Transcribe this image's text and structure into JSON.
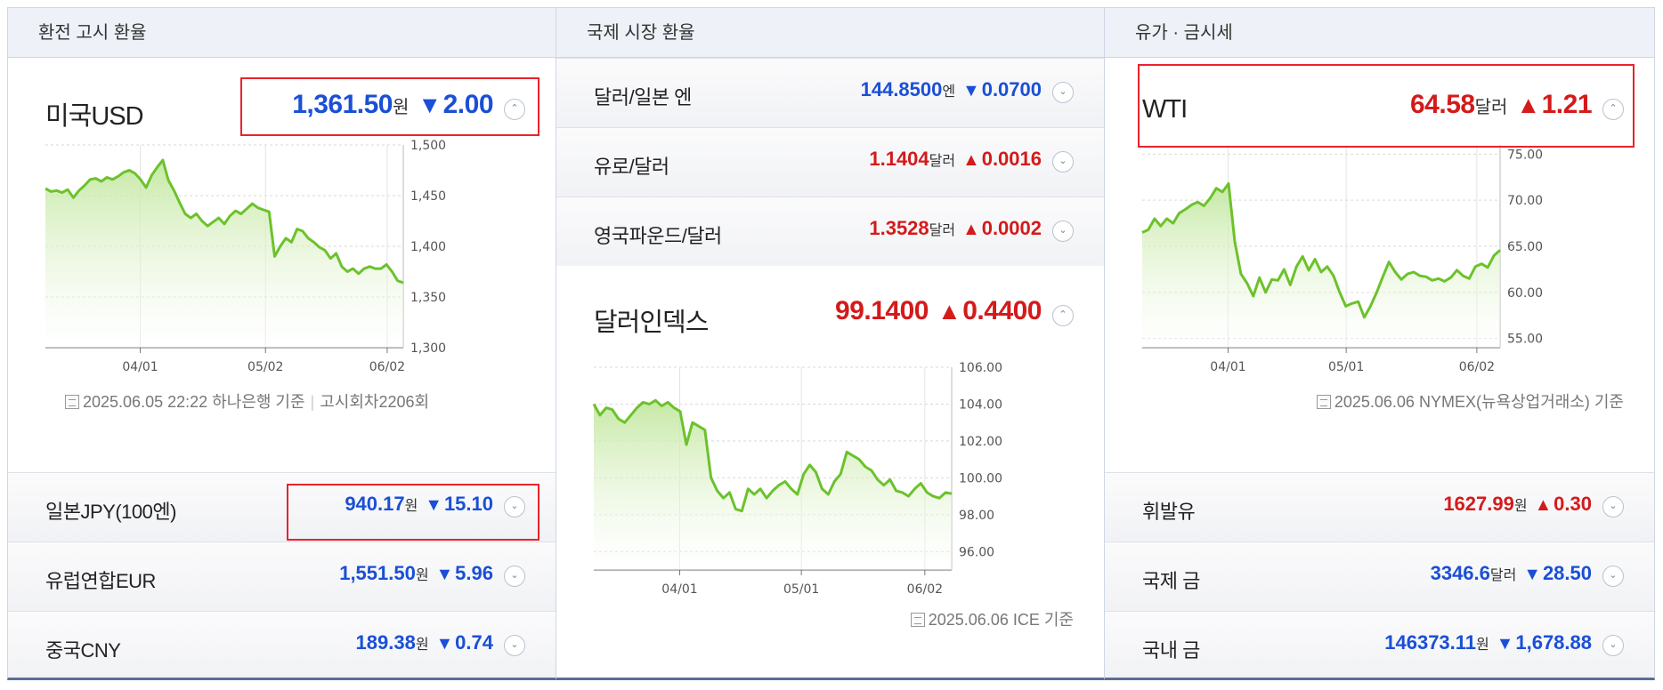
{
  "panels": {
    "left": {
      "title": "환전 고시 환율",
      "main": {
        "name": "미국USD",
        "value": "1,361.50",
        "unit": "원",
        "direction": "down",
        "change": "2.00"
      },
      "chart_data": {
        "type": "area",
        "title": "",
        "x_ticks": [
          "04/01",
          "05/02",
          "06/02"
        ],
        "y_ticks": [
          "1,500",
          "1,450",
          "1,400",
          "1,350",
          "1,300"
        ],
        "ylim": [
          1300,
          1500
        ],
        "grid": true,
        "series": [
          {
            "values": [
              1457,
              1454,
              1455,
              1453,
              1456,
              1448,
              1455,
              1460,
              1466,
              1467,
              1464,
              1468,
              1466,
              1469,
              1473,
              1475,
              1472,
              1466,
              1458,
              1470,
              1478,
              1485,
              1465,
              1455,
              1443,
              1432,
              1428,
              1432,
              1425,
              1420,
              1424,
              1428,
              1422,
              1430,
              1435,
              1432,
              1437,
              1442,
              1438,
              1436,
              1434,
              1390,
              1400,
              1408,
              1404,
              1417,
              1415,
              1408,
              1404,
              1399,
              1396,
              1388,
              1393,
              1380,
              1375,
              1378,
              1373,
              1378,
              1380,
              1378,
              1378,
              1382,
              1375,
              1366,
              1364
            ]
          }
        ]
      },
      "source": {
        "date": "2025.06.05 22:22",
        "bank": "하나은행 기준",
        "round": "고시회차2206회"
      },
      "rows": [
        {
          "name": "일본JPY(100엔)",
          "value": "940.17",
          "unit": "원",
          "direction": "down",
          "change": "15.10"
        },
        {
          "name": "유럽연합EUR",
          "value": "1,551.50",
          "unit": "원",
          "direction": "down",
          "change": "5.96"
        },
        {
          "name": "중국CNY",
          "value": "189.38",
          "unit": "원",
          "direction": "down",
          "change": "0.74"
        }
      ]
    },
    "middle": {
      "title": "국제 시장 환율",
      "rows": [
        {
          "name": "달러/일본 엔",
          "value": "144.8500",
          "unit": "엔",
          "direction": "down",
          "change": "0.0700"
        },
        {
          "name": "유로/달러",
          "value": "1.1404",
          "unit": "달러",
          "direction": "up",
          "change": "0.0016"
        },
        {
          "name": "영국파운드/달러",
          "value": "1.3528",
          "unit": "달러",
          "direction": "up",
          "change": "0.0002"
        }
      ],
      "main": {
        "name": "달러인덱스",
        "value": "99.1400",
        "unit": "",
        "direction": "up",
        "change": "0.4400"
      },
      "chart_data": {
        "type": "area",
        "title": "",
        "x_ticks": [
          "04/01",
          "05/01",
          "06/02"
        ],
        "y_ticks": [
          "106.00",
          "104.00",
          "102.00",
          "100.00",
          "98.00",
          "96.00"
        ],
        "ylim": [
          95,
          106
        ],
        "grid": true,
        "series": [
          {
            "values": [
              104.0,
              103.4,
              103.8,
              103.7,
              103.2,
              103.0,
              103.4,
              103.8,
              104.1,
              104.0,
              104.2,
              103.9,
              104.1,
              103.8,
              103.6,
              101.8,
              103.0,
              102.8,
              102.6,
              100.0,
              99.3,
              98.9,
              99.2,
              98.3,
              98.2,
              99.4,
              99.1,
              99.4,
              98.9,
              99.3,
              99.6,
              99.8,
              99.4,
              99.1,
              100.2,
              100.7,
              100.3,
              99.4,
              99.1,
              99.8,
              100.2,
              101.4,
              101.2,
              101.0,
              100.6,
              100.4,
              99.9,
              99.6,
              99.9,
              99.3,
              99.2,
              99.0,
              99.4,
              99.7,
              99.2,
              99.0,
              98.9,
              99.2,
              99.14
            ]
          }
        ]
      },
      "source": {
        "date": "2025.06.06",
        "label": "ICE 기준"
      }
    },
    "right": {
      "title": "유가 · 금시세",
      "main": {
        "name": "WTI",
        "value": "64.58",
        "unit": "달러",
        "direction": "up",
        "change": "1.21"
      },
      "chart_data": {
        "type": "area",
        "title": "",
        "x_ticks": [
          "04/01",
          "05/01",
          "06/02"
        ],
        "y_ticks": [
          "75.00",
          "70.00",
          "65.00",
          "60.00",
          "55.00"
        ],
        "ylim": [
          54,
          76
        ],
        "grid": true,
        "series": [
          {
            "values": [
              66.5,
              66.8,
              68.0,
              67.2,
              68.0,
              67.5,
              68.6,
              69.0,
              69.5,
              69.8,
              69.4,
              70.2,
              71.3,
              70.9,
              71.8,
              65.5,
              62.0,
              61.0,
              59.6,
              61.6,
              60.0,
              61.4,
              61.3,
              62.5,
              60.8,
              62.8,
              63.9,
              62.4,
              63.6,
              62.2,
              62.8,
              61.8,
              60.0,
              58.5,
              58.8,
              59.0,
              57.3,
              58.5,
              60.0,
              61.7,
              63.3,
              62.2,
              61.4,
              62.0,
              62.2,
              61.8,
              61.7,
              61.3,
              61.5,
              61.2,
              61.6,
              62.4,
              61.8,
              61.5,
              62.8,
              63.1,
              62.7,
              64.0,
              64.58
            ]
          }
        ]
      },
      "source": {
        "date": "2025.06.06",
        "label": "NYMEX(뉴욕상업거래소) 기준"
      },
      "rows": [
        {
          "name": "휘발유",
          "value": "1627.99",
          "unit": "원",
          "direction": "up",
          "change": "0.30"
        },
        {
          "name": "국제 금",
          "value": "3346.6",
          "unit": "달러",
          "direction": "down",
          "change": "28.50"
        },
        {
          "name": "국내 금",
          "value": "146373.11",
          "unit": "원",
          "direction": "down",
          "change": "1,678.88"
        }
      ]
    }
  },
  "symbols": {
    "down_arrow": "▼",
    "up_arrow": "▲",
    "toggle_icon": "⌃",
    "expand_icon": "⌄"
  },
  "colors": {
    "up": "#d41a1a",
    "down": "#1a4fd6",
    "line": "#6cc22b",
    "highlight": "#e8232b"
  }
}
